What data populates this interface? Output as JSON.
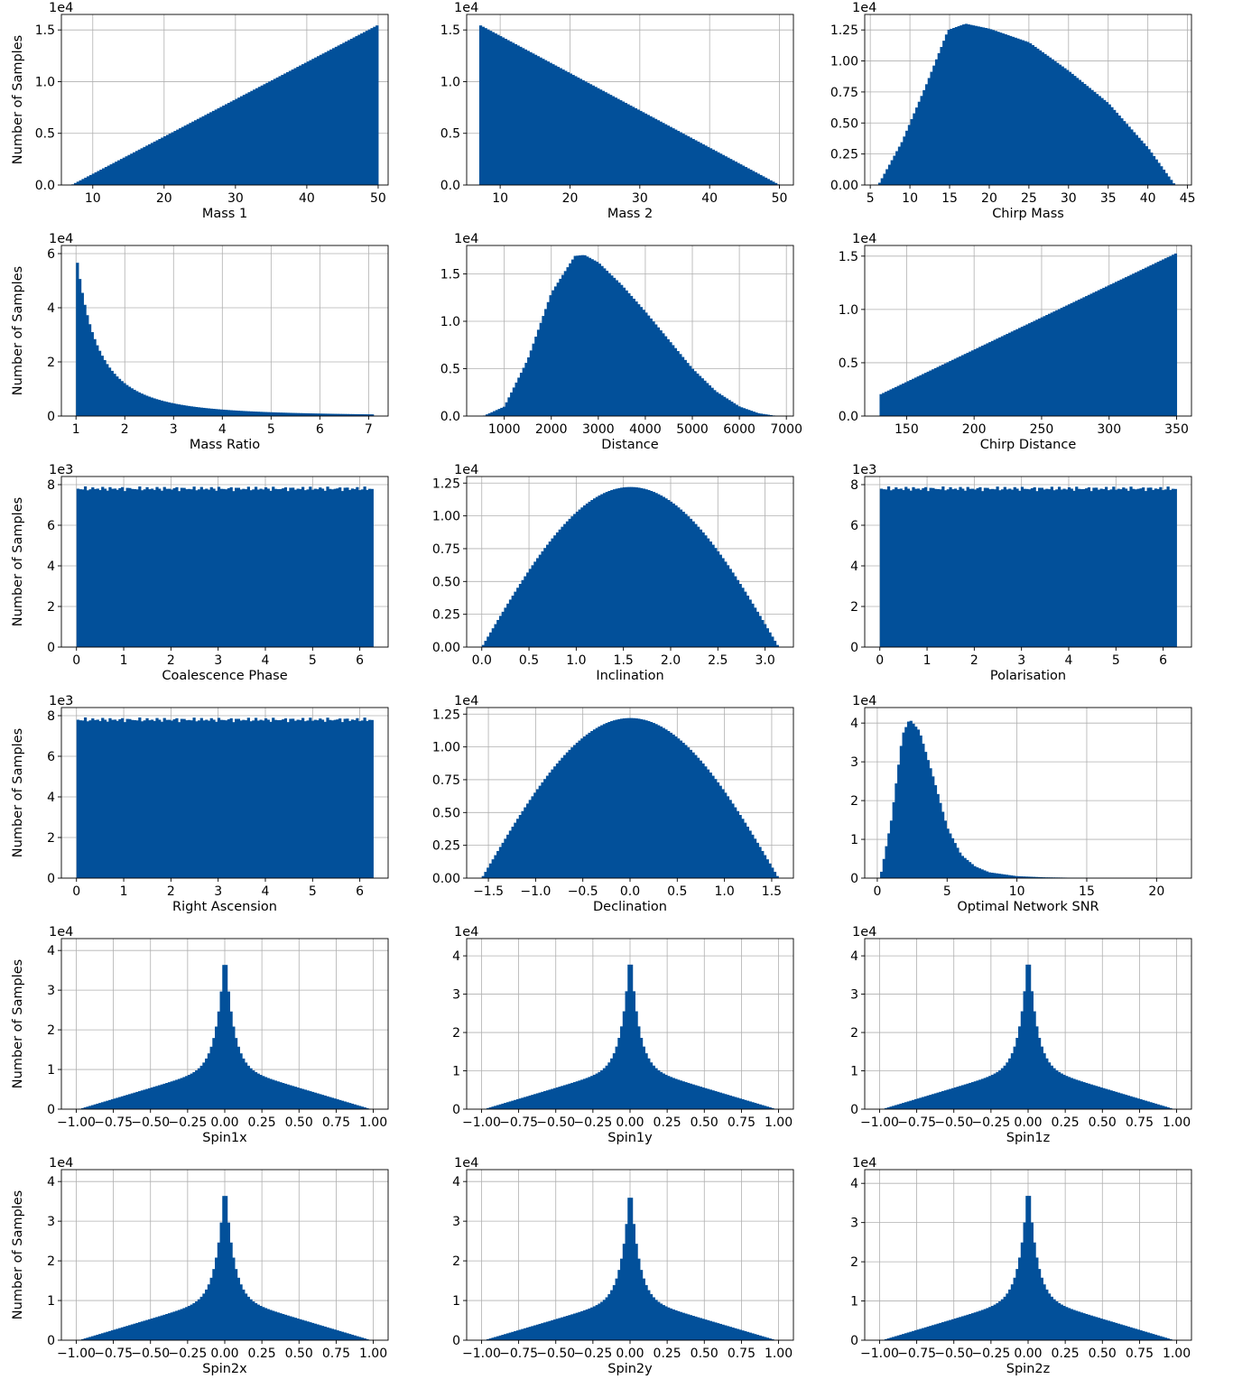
{
  "figure": {
    "bar_color": "#02509A",
    "grid_color": "#b0b0b0",
    "ylabel": "Number of Samples"
  },
  "chart_data": [
    {
      "type": "bar",
      "xlabel": "Mass 1",
      "ylabel": "Number of Samples",
      "multiplier": "1e4",
      "xlim": [
        5.6,
        51.4
      ],
      "ylim": [
        0,
        1.65
      ],
      "xticks": [
        10,
        20,
        30,
        40,
        50
      ],
      "xtick_labels": [
        "10",
        "20",
        "30",
        "40",
        "50"
      ],
      "yticks": [
        0,
        0.5,
        1.0,
        1.5
      ],
      "ytick_labels": [
        "0.0",
        "0.5",
        "1.0",
        "1.5"
      ],
      "shape": {
        "kind": "ramp",
        "x": [
          7,
          50
        ],
        "y": [
          0,
          1.55
        ]
      }
    },
    {
      "type": "bar",
      "xlabel": "Mass 2",
      "ylabel": "",
      "multiplier": "1e4",
      "xlim": [
        5.2,
        52
      ],
      "ylim": [
        0,
        1.65
      ],
      "xticks": [
        10,
        20,
        30,
        40,
        50
      ],
      "xtick_labels": [
        "10",
        "20",
        "30",
        "40",
        "50"
      ],
      "yticks": [
        0,
        0.5,
        1.0,
        1.5
      ],
      "ytick_labels": [
        "0.0",
        "0.5",
        "1.0",
        "1.5"
      ],
      "shape": {
        "kind": "ramp",
        "x": [
          7,
          50
        ],
        "y": [
          1.55,
          0
        ]
      }
    },
    {
      "type": "bar",
      "xlabel": "Chirp Mass",
      "ylabel": "",
      "multiplier": "1e4",
      "xlim": [
        4.3,
        45.5
      ],
      "ylim": [
        0,
        1.375
      ],
      "xticks": [
        5,
        10,
        15,
        20,
        25,
        30,
        35,
        40,
        45
      ],
      "xtick_labels": [
        "5",
        "10",
        "15",
        "20",
        "25",
        "30",
        "35",
        "40",
        "45"
      ],
      "yticks": [
        0,
        0.25,
        0.5,
        0.75,
        1.0,
        1.25
      ],
      "ytick_labels": [
        "0.00",
        "0.25",
        "0.50",
        "0.75",
        "1.00",
        "1.25"
      ],
      "shape": {
        "kind": "points",
        "x": [
          6,
          9,
          12,
          14.8,
          17,
          20,
          25,
          30,
          35,
          40,
          43.4
        ],
        "y": [
          0,
          0.35,
          0.8,
          1.25,
          1.3,
          1.26,
          1.15,
          0.92,
          0.66,
          0.3,
          0
        ]
      }
    },
    {
      "type": "bar",
      "xlabel": "Mass Ratio",
      "ylabel": "Number of Samples",
      "multiplier": "1e4",
      "xlim": [
        0.7,
        7.4
      ],
      "ylim": [
        0,
        6.3
      ],
      "xticks": [
        1,
        2,
        3,
        4,
        5,
        6,
        7
      ],
      "xtick_labels": [
        "1",
        "2",
        "3",
        "4",
        "5",
        "6",
        "7"
      ],
      "yticks": [
        0,
        2,
        4,
        6
      ],
      "ytick_labels": [
        "0",
        "2",
        "4",
        "6"
      ],
      "shape": {
        "kind": "decay",
        "x": [
          1,
          7.1
        ],
        "peak": 6.0,
        "power": 2.3
      }
    },
    {
      "type": "bar",
      "xlabel": "Distance",
      "ylabel": "",
      "multiplier": "1e4",
      "xlim": [
        200,
        7150
      ],
      "ylim": [
        0,
        1.8
      ],
      "xticks": [
        1000,
        2000,
        3000,
        4000,
        5000,
        6000,
        7000
      ],
      "xtick_labels": [
        "1000",
        "2000",
        "3000",
        "4000",
        "5000",
        "6000",
        "7000"
      ],
      "yticks": [
        0,
        0.5,
        1.0,
        1.5
      ],
      "ytick_labels": [
        "0.0",
        "0.5",
        "1.0",
        "1.5"
      ],
      "shape": {
        "kind": "points",
        "x": [
          550,
          1000,
          1500,
          2000,
          2500,
          2700,
          3000,
          3500,
          4000,
          4500,
          5000,
          5500,
          6000,
          6400,
          6800
        ],
        "y": [
          0,
          0.1,
          0.6,
          1.3,
          1.69,
          1.7,
          1.62,
          1.38,
          1.1,
          0.8,
          0.5,
          0.26,
          0.1,
          0.03,
          0
        ]
      }
    },
    {
      "type": "bar",
      "xlabel": "Chirp Distance",
      "ylabel": "",
      "multiplier": "1e4",
      "xlim": [
        119,
        361
      ],
      "ylim": [
        0,
        1.6
      ],
      "xticks": [
        150,
        200,
        250,
        300,
        350
      ],
      "xtick_labels": [
        "150",
        "200",
        "250",
        "300",
        "350"
      ],
      "yticks": [
        0,
        0.5,
        1.0,
        1.5
      ],
      "ytick_labels": [
        "0.0",
        "0.5",
        "1.0",
        "1.5"
      ],
      "shape": {
        "kind": "ramp",
        "x": [
          130,
          350
        ],
        "y": [
          0.2,
          1.53
        ]
      }
    },
    {
      "type": "bar",
      "xlabel": "Coalescence Phase",
      "ylabel": "Number of Samples",
      "multiplier": "1e3",
      "xlim": [
        -0.32,
        6.6
      ],
      "ylim": [
        0,
        8.4
      ],
      "xticks": [
        0,
        1,
        2,
        3,
        4,
        5,
        6
      ],
      "xtick_labels": [
        "0",
        "1",
        "2",
        "3",
        "4",
        "5",
        "6"
      ],
      "yticks": [
        0,
        2,
        4,
        6,
        8
      ],
      "ytick_labels": [
        "0",
        "2",
        "4",
        "6",
        "8"
      ],
      "shape": {
        "kind": "flat",
        "x": [
          0,
          6.2832
        ],
        "y": 7.8
      }
    },
    {
      "type": "bar",
      "xlabel": "Inclination",
      "ylabel": "",
      "multiplier": "1e4",
      "xlim": [
        -0.16,
        3.3
      ],
      "ylim": [
        0,
        1.3
      ],
      "xticks": [
        0,
        0.5,
        1.0,
        1.5,
        2.0,
        2.5,
        3.0
      ],
      "xtick_labels": [
        "0.0",
        "0.5",
        "1.0",
        "1.5",
        "2.0",
        "2.5",
        "3.0"
      ],
      "yticks": [
        0,
        0.25,
        0.5,
        0.75,
        1.0,
        1.25
      ],
      "ytick_labels": [
        "0.00",
        "0.25",
        "0.50",
        "0.75",
        "1.00",
        "1.25"
      ],
      "shape": {
        "kind": "sine",
        "x": [
          0,
          3.1416
        ],
        "peak": 1.22
      }
    },
    {
      "type": "bar",
      "xlabel": "Polarisation",
      "ylabel": "",
      "multiplier": "1e3",
      "xlim": [
        -0.32,
        6.6
      ],
      "ylim": [
        0,
        8.4
      ],
      "xticks": [
        0,
        1,
        2,
        3,
        4,
        5,
        6
      ],
      "xtick_labels": [
        "0",
        "1",
        "2",
        "3",
        "4",
        "5",
        "6"
      ],
      "yticks": [
        0,
        2,
        4,
        6,
        8
      ],
      "ytick_labels": [
        "0",
        "2",
        "4",
        "6",
        "8"
      ],
      "shape": {
        "kind": "flat",
        "x": [
          0,
          6.2832
        ],
        "y": 7.8
      }
    },
    {
      "type": "bar",
      "xlabel": "Right Ascension",
      "ylabel": "Number of Samples",
      "multiplier": "1e3",
      "xlim": [
        -0.32,
        6.6
      ],
      "ylim": [
        0,
        8.4
      ],
      "xticks": [
        0,
        1,
        2,
        3,
        4,
        5,
        6
      ],
      "xtick_labels": [
        "0",
        "1",
        "2",
        "3",
        "4",
        "5",
        "6"
      ],
      "yticks": [
        0,
        2,
        4,
        6,
        8
      ],
      "ytick_labels": [
        "0",
        "2",
        "4",
        "6",
        "8"
      ],
      "shape": {
        "kind": "flat",
        "x": [
          0,
          6.2832
        ],
        "y": 7.8
      }
    },
    {
      "type": "bar",
      "xlabel": "Declination",
      "ylabel": "",
      "multiplier": "1e4",
      "xlim": [
        -1.73,
        1.73
      ],
      "ylim": [
        0,
        1.3
      ],
      "xticks": [
        -1.5,
        -1.0,
        -0.5,
        0,
        0.5,
        1.0,
        1.5
      ],
      "xtick_labels": [
        "−1.5",
        "−1.0",
        "−0.5",
        "0.0",
        "0.5",
        "1.0",
        "1.5"
      ],
      "yticks": [
        0,
        0.25,
        0.5,
        0.75,
        1.0,
        1.25
      ],
      "ytick_labels": [
        "0.00",
        "0.25",
        "0.50",
        "0.75",
        "1.00",
        "1.25"
      ],
      "shape": {
        "kind": "cosine",
        "x": [
          -1.5708,
          1.5708
        ],
        "peak": 1.22
      }
    },
    {
      "type": "bar",
      "xlabel": "Optimal Network SNR",
      "ylabel": "",
      "multiplier": "1e4",
      "xlim": [
        -0.9,
        22.5
      ],
      "ylim": [
        0,
        4.4
      ],
      "xticks": [
        0,
        5,
        10,
        15,
        20
      ],
      "xtick_labels": [
        "0",
        "5",
        "10",
        "15",
        "20"
      ],
      "yticks": [
        0,
        1,
        2,
        3,
        4
      ],
      "ytick_labels": [
        "0",
        "1",
        "2",
        "3",
        "4"
      ],
      "shape": {
        "kind": "points",
        "x": [
          0.2,
          1,
          1.8,
          2.3,
          3,
          4,
          5,
          6,
          7,
          8,
          10,
          12,
          15,
          21.3
        ],
        "y": [
          0,
          1.5,
          3.7,
          4.1,
          3.8,
          2.6,
          1.3,
          0.6,
          0.3,
          0.15,
          0.05,
          0.02,
          0.005,
          0
        ]
      }
    },
    {
      "type": "bar",
      "xlabel": "Spin1x",
      "ylabel": "Number of Samples",
      "multiplier": "1e4",
      "xlim": [
        -1.1,
        1.1
      ],
      "ylim": [
        0,
        4.3
      ],
      "xticks": [
        -1,
        -0.75,
        -0.5,
        -0.25,
        0,
        0.25,
        0.5,
        0.75,
        1
      ],
      "xtick_labels": [
        "−1.00",
        "−0.75",
        "−0.50",
        "−0.25",
        "0.00",
        "0.25",
        "0.50",
        "0.75",
        "1.00"
      ],
      "yticks": [
        0,
        1,
        2,
        3,
        4
      ],
      "ytick_labels": [
        "0",
        "1",
        "2",
        "3",
        "4"
      ],
      "shape": {
        "kind": "cusp",
        "x": [
          -1,
          1
        ],
        "peak": 4.05
      }
    },
    {
      "type": "bar",
      "xlabel": "Spin1y",
      "ylabel": "",
      "multiplier": "1e4",
      "xlim": [
        -1.1,
        1.1
      ],
      "ylim": [
        0,
        4.45
      ],
      "xticks": [
        -1,
        -0.75,
        -0.5,
        -0.25,
        0,
        0.25,
        0.5,
        0.75,
        1
      ],
      "xtick_labels": [
        "−1.00",
        "−0.75",
        "−0.50",
        "−0.25",
        "0.00",
        "0.25",
        "0.50",
        "0.75",
        "1.00"
      ],
      "yticks": [
        0,
        1,
        2,
        3,
        4
      ],
      "ytick_labels": [
        "0",
        "1",
        "2",
        "3",
        "4"
      ],
      "shape": {
        "kind": "cusp",
        "x": [
          -1,
          1
        ],
        "peak": 4.2
      }
    },
    {
      "type": "bar",
      "xlabel": "Spin1z",
      "ylabel": "",
      "multiplier": "1e4",
      "xlim": [
        -1.1,
        1.1
      ],
      "ylim": [
        0,
        4.45
      ],
      "xticks": [
        -1,
        -0.75,
        -0.5,
        -0.25,
        0,
        0.25,
        0.5,
        0.75,
        1
      ],
      "xtick_labels": [
        "−1.00",
        "−0.75",
        "−0.50",
        "−0.25",
        "0.00",
        "0.25",
        "0.50",
        "0.75",
        "1.00"
      ],
      "yticks": [
        0,
        1,
        2,
        3,
        4
      ],
      "ytick_labels": [
        "0",
        "1",
        "2",
        "3",
        "4"
      ],
      "shape": {
        "kind": "cusp",
        "x": [
          -1,
          1
        ],
        "peak": 4.2
      }
    },
    {
      "type": "bar",
      "xlabel": "Spin2x",
      "ylabel": "Number of Samples",
      "multiplier": "1e4",
      "xlim": [
        -1.1,
        1.1
      ],
      "ylim": [
        0,
        4.3
      ],
      "xticks": [
        -1,
        -0.75,
        -0.5,
        -0.25,
        0,
        0.25,
        0.5,
        0.75,
        1
      ],
      "xtick_labels": [
        "−1.00",
        "−0.75",
        "−0.50",
        "−0.25",
        "0.00",
        "0.25",
        "0.50",
        "0.75",
        "1.00"
      ],
      "yticks": [
        0,
        1,
        2,
        3,
        4
      ],
      "ytick_labels": [
        "0",
        "1",
        "2",
        "3",
        "4"
      ],
      "shape": {
        "kind": "cusp",
        "x": [
          -1,
          1
        ],
        "peak": 4.05
      }
    },
    {
      "type": "bar",
      "xlabel": "Spin2y",
      "ylabel": "",
      "multiplier": "1e4",
      "xlim": [
        -1.1,
        1.1
      ],
      "ylim": [
        0,
        4.3
      ],
      "xticks": [
        -1,
        -0.75,
        -0.5,
        -0.25,
        0,
        0.25,
        0.5,
        0.75,
        1
      ],
      "xtick_labels": [
        "−1.00",
        "−0.75",
        "−0.50",
        "−0.25",
        "0.00",
        "0.25",
        "0.50",
        "0.75",
        "1.00"
      ],
      "yticks": [
        0,
        1,
        2,
        3,
        4
      ],
      "ytick_labels": [
        "0",
        "1",
        "2",
        "3",
        "4"
      ],
      "shape": {
        "kind": "cusp",
        "x": [
          -1,
          1
        ],
        "peak": 4.0
      }
    },
    {
      "type": "bar",
      "xlabel": "Spin2z",
      "ylabel": "",
      "multiplier": "1e4",
      "xlim": [
        -1.1,
        1.1
      ],
      "ylim": [
        0,
        4.35
      ],
      "xticks": [
        -1,
        -0.75,
        -0.5,
        -0.25,
        0,
        0.25,
        0.5,
        0.75,
        1
      ],
      "xtick_labels": [
        "−1.00",
        "−0.75",
        "−0.50",
        "−0.25",
        "0.00",
        "0.25",
        "0.50",
        "0.75",
        "1.00"
      ],
      "yticks": [
        0,
        1,
        2,
        3,
        4
      ],
      "ytick_labels": [
        "0",
        "1",
        "2",
        "3",
        "4"
      ],
      "shape": {
        "kind": "cusp",
        "x": [
          -1,
          1
        ],
        "peak": 4.1
      }
    }
  ]
}
